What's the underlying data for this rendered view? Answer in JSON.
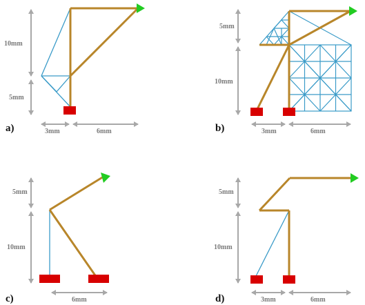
{
  "colors": {
    "thin_member": "#3a9bc8",
    "thick_member": "#b8862a",
    "support": "#d80000",
    "load_arrow": "#22cc22",
    "dimension": "#a8a8a8",
    "dimension_text": "#7a7a7a"
  },
  "panels": [
    {
      "label": "a)",
      "dims": {
        "top": "10mm",
        "bottom": "5mm",
        "left": "3mm",
        "right": "6mm"
      }
    },
    {
      "label": "b)",
      "dims": {
        "top": "5mm",
        "bottom": "10mm",
        "left": "3mm",
        "right": "6mm"
      }
    },
    {
      "label": "c)",
      "dims": {
        "top": "5mm",
        "bottom": "10mm",
        "span": "6mm"
      }
    },
    {
      "label": "d)",
      "dims": {
        "top": "5mm",
        "bottom": "10mm",
        "left": "3mm",
        "right": "6mm"
      }
    }
  ]
}
